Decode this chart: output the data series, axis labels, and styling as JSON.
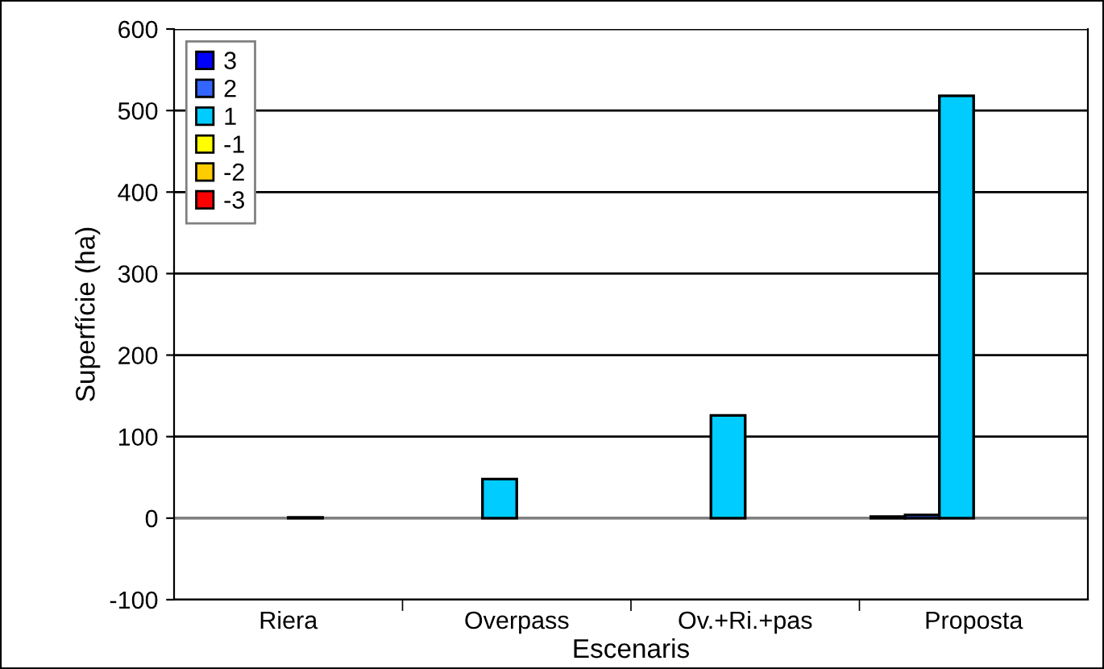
{
  "chart_data": {
    "type": "bar",
    "xlabel": "Escenaris",
    "ylabel": "Superfície (ha)",
    "categories": [
      "Riera",
      "Overpass",
      "Ov.+Ri.+pas",
      "Proposta"
    ],
    "series": [
      {
        "name": "3",
        "color": "#0000ff",
        "values": [
          null,
          null,
          null,
          2
        ]
      },
      {
        "name": "2",
        "color": "#3366ff",
        "values": [
          null,
          null,
          null,
          4
        ]
      },
      {
        "name": "1",
        "color": "#00ccff",
        "values": [
          null,
          48,
          126,
          518
        ]
      },
      {
        "name": "-1",
        "color": "#ffff00",
        "values": [
          1,
          null,
          null,
          null
        ]
      },
      {
        "name": "-2",
        "color": "#ffcc00",
        "values": [
          null,
          null,
          null,
          null
        ]
      },
      {
        "name": "-3",
        "color": "#ff0000",
        "values": [
          null,
          null,
          null,
          null
        ]
      }
    ],
    "ylim": [
      -100,
      600
    ],
    "yticks": [
      -100,
      0,
      100,
      200,
      300,
      400,
      500,
      600
    ],
    "grid": "y",
    "legend": "top left"
  }
}
